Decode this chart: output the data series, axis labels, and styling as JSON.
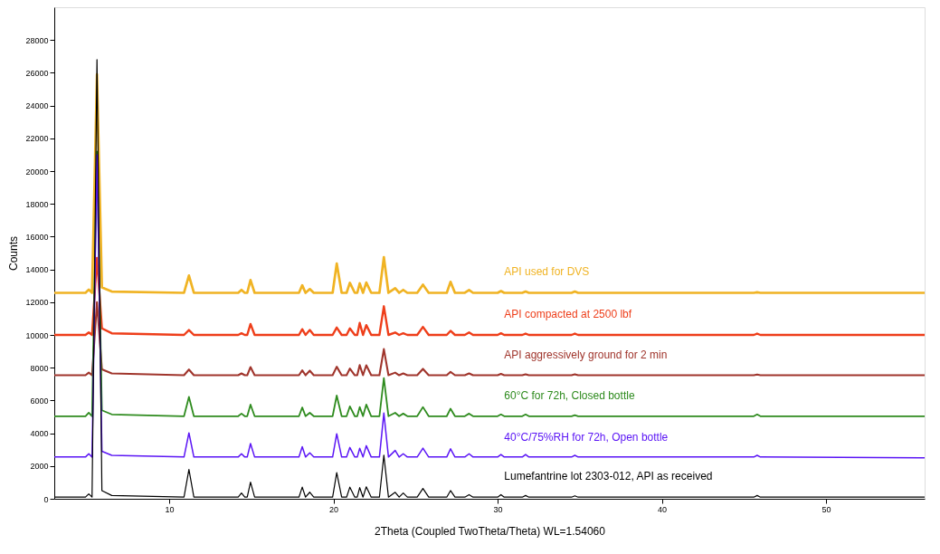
{
  "chart_data": {
    "type": "line",
    "xlabel": "2Theta (Coupled TwoTheta/Theta) WL=1.54060",
    "ylabel": "Counts",
    "xlim": [
      3,
      56
    ],
    "xticks": [
      10,
      20,
      30,
      40,
      50
    ],
    "ylim": [
      0,
      30000
    ],
    "yticks": [
      0,
      2000,
      4000,
      6000,
      8000,
      10000,
      12000,
      14000,
      16000,
      18000,
      20000,
      22000,
      24000,
      26000,
      28000
    ],
    "grid": false,
    "legend": false,
    "marker": "none",
    "line_style": "solid",
    "x": [
      3,
      4.9,
      5.1,
      5.3,
      5.6,
      5.9,
      6.5,
      10.9,
      11.2,
      11.5,
      14.2,
      14.4,
      14.6,
      14.75,
      14.95,
      15.2,
      17.9,
      18.1,
      18.3,
      18.56,
      18.8,
      19.95,
      20.2,
      20.5,
      20.8,
      21.0,
      21.3,
      21.45,
      21.6,
      21.8,
      22.0,
      22.3,
      22.8,
      23.07,
      23.35,
      23.76,
      24.0,
      24.25,
      24.5,
      25.1,
      25.45,
      25.8,
      26.9,
      27.13,
      27.4,
      28.0,
      28.26,
      28.5,
      30.0,
      30.2,
      30.4,
      31.5,
      31.7,
      31.9,
      34.5,
      34.7,
      34.9,
      45.6,
      45.8,
      46.0,
      56
    ],
    "series": [
      {
        "name": "API used for DVS",
        "color": "#f0b323",
        "values": [
          12570,
          12570,
          12770,
          12570,
          25900,
          12900,
          12650,
          12570,
          13630,
          12570,
          12570,
          12750,
          12570,
          12570,
          13350,
          12570,
          12570,
          13030,
          12570,
          12800,
          12570,
          12570,
          14360,
          12570,
          12570,
          13180,
          12570,
          12570,
          13150,
          12570,
          13200,
          12570,
          12570,
          14750,
          12570,
          12850,
          12570,
          12750,
          12570,
          12570,
          13070,
          12570,
          12570,
          13240,
          12570,
          12570,
          12740,
          12570,
          12570,
          12680,
          12570,
          12570,
          12650,
          12570,
          12570,
          12650,
          12570,
          12570,
          12600,
          12570,
          12570
        ]
      },
      {
        "name": "API compacted at 2500 lbf",
        "color": "#ee3e1a",
        "values": [
          10000,
          10000,
          10150,
          10000,
          14700,
          10400,
          10100,
          10000,
          10300,
          10000,
          10000,
          10100,
          10000,
          10000,
          10670,
          10000,
          10000,
          10350,
          10000,
          10300,
          10000,
          10000,
          10450,
          10000,
          10000,
          10400,
          10000,
          10000,
          10730,
          10000,
          10600,
          10000,
          10000,
          11750,
          10000,
          10150,
          10000,
          10100,
          10000,
          10000,
          10490,
          10000,
          10000,
          10250,
          10000,
          10000,
          10150,
          10000,
          10000,
          10100,
          10000,
          10000,
          10080,
          10000,
          10000,
          10080,
          10000,
          10000,
          10080,
          10000,
          10000
        ]
      },
      {
        "name": "API aggressively ground for 2 min",
        "color": "#a0352c",
        "values": [
          7540,
          7540,
          7700,
          7540,
          12000,
          7900,
          7650,
          7540,
          7890,
          7540,
          7540,
          7650,
          7540,
          7540,
          8040,
          7540,
          7540,
          7840,
          7540,
          7820,
          7540,
          7540,
          8060,
          7540,
          7540,
          7950,
          7540,
          7540,
          8160,
          7540,
          8150,
          7540,
          7540,
          9140,
          7540,
          7700,
          7540,
          7650,
          7540,
          7540,
          7930,
          7540,
          7540,
          7750,
          7540,
          7540,
          7650,
          7540,
          7540,
          7620,
          7540,
          7540,
          7600,
          7540,
          7540,
          7600,
          7540,
          7540,
          7580,
          7540,
          7540
        ]
      },
      {
        "name": "60°C for 72h, Closed bottle",
        "color": "#2e8b1e",
        "values": [
          5040,
          5040,
          5250,
          5040,
          21200,
          5400,
          5150,
          5040,
          6220,
          5040,
          5040,
          5200,
          5040,
          5040,
          5750,
          5040,
          5040,
          5570,
          5040,
          5250,
          5040,
          5040,
          6300,
          5040,
          5040,
          5640,
          5040,
          5040,
          5600,
          5040,
          5750,
          5040,
          5040,
          7370,
          5040,
          5250,
          5040,
          5200,
          5040,
          5040,
          5600,
          5040,
          5040,
          5500,
          5040,
          5040,
          5200,
          5040,
          5040,
          5150,
          5040,
          5040,
          5150,
          5040,
          5040,
          5100,
          5040,
          5040,
          5150,
          5040,
          5040
        ]
      },
      {
        "name": "40°C/75%RH for 72h, Open bottle",
        "color": "#5b16f5",
        "values": [
          2550,
          2550,
          2750,
          2550,
          21000,
          2900,
          2650,
          2550,
          4020,
          2550,
          2550,
          2750,
          2550,
          2550,
          3370,
          2550,
          2550,
          3180,
          2550,
          2800,
          2550,
          2550,
          3970,
          2550,
          2550,
          3130,
          2550,
          2550,
          3080,
          2550,
          3240,
          2550,
          2550,
          5230,
          2550,
          2950,
          2550,
          2750,
          2550,
          2550,
          3090,
          2550,
          2550,
          3050,
          2550,
          2550,
          2750,
          2550,
          2550,
          2700,
          2550,
          2550,
          2700,
          2550,
          2550,
          2650,
          2550,
          2550,
          2650,
          2550,
          2500
        ]
      },
      {
        "name": "Lumefantrine lot 2303-012, API as received",
        "color": "#000000",
        "values": [
          100,
          100,
          300,
          100,
          26800,
          500,
          200,
          100,
          1790,
          100,
          100,
          350,
          100,
          100,
          1020,
          100,
          100,
          710,
          100,
          400,
          100,
          100,
          1600,
          100,
          100,
          710,
          100,
          100,
          680,
          100,
          730,
          100,
          100,
          2660,
          100,
          400,
          100,
          350,
          100,
          100,
          630,
          100,
          100,
          500,
          100,
          100,
          250,
          100,
          100,
          250,
          100,
          100,
          200,
          100,
          100,
          180,
          100,
          100,
          200,
          100,
          100
        ]
      }
    ]
  }
}
